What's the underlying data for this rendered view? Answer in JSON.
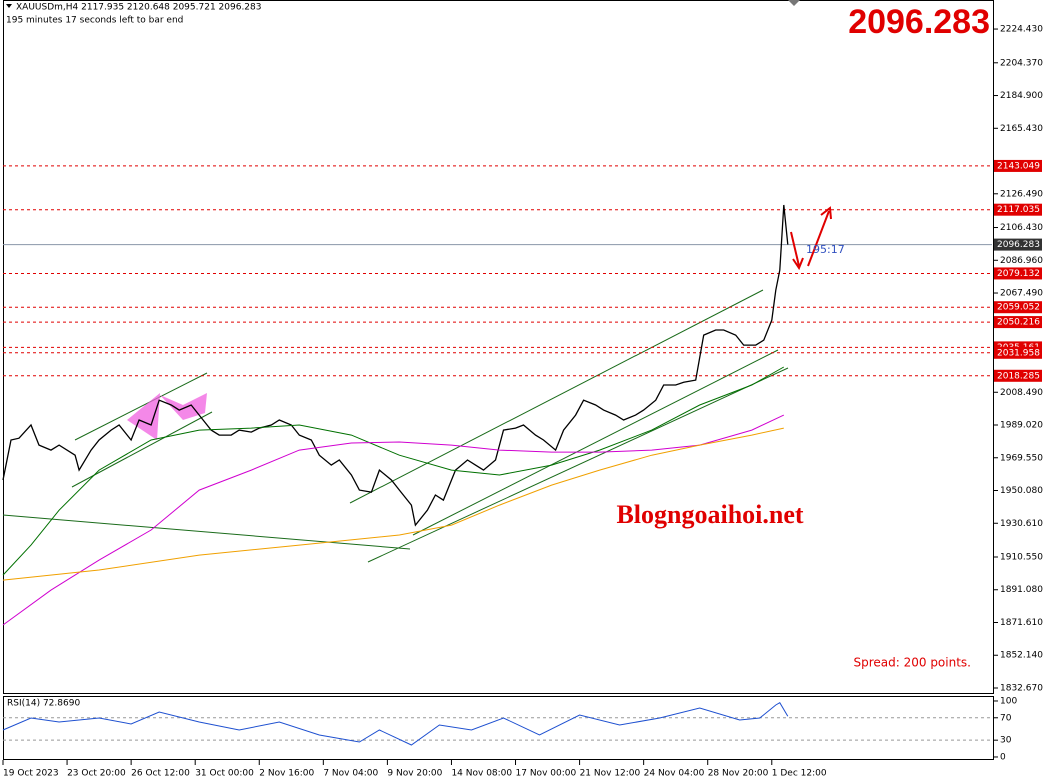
{
  "header": {
    "symbol_line": "XAUUSDm,H4  2117.935 2120.648 2095.721 2096.283",
    "timer_line": "195 minutes 17 seconds left to bar end"
  },
  "watermark": "Blogngoaihoi.net",
  "spread": "Spread: 200 points.",
  "countdown": "195:17",
  "chart_data": [
    {
      "type": "line",
      "xlim": [
        0,
        247
      ],
      "ylim": [
        1829.1,
        2241.7
      ],
      "yticks": [
        {
          "value": 2224.43,
          "label": "2224.430"
        },
        {
          "value": 2204.37,
          "label": "2204.370"
        },
        {
          "value": 2184.9,
          "label": "2184.900"
        },
        {
          "value": 2165.43,
          "label": "2165.430"
        },
        {
          "value": 2126.49,
          "label": "2126.490"
        },
        {
          "value": 2106.43,
          "label": "2106.430"
        },
        {
          "value": 2086.96,
          "label": "2086.960"
        },
        {
          "value": 2067.49,
          "label": "2067.490"
        },
        {
          "value": 2008.49,
          "label": "2008.490"
        },
        {
          "value": 1989.02,
          "label": "1989.020"
        },
        {
          "value": 1969.55,
          "label": "1969.550"
        },
        {
          "value": 1950.08,
          "label": "1950.080"
        },
        {
          "value": 1930.61,
          "label": "1930.610"
        },
        {
          "value": 1910.55,
          "label": "1910.550"
        },
        {
          "value": 1891.08,
          "label": "1891.080"
        },
        {
          "value": 1871.61,
          "label": "1871.610"
        },
        {
          "value": 1852.14,
          "label": "1852.140"
        },
        {
          "value": 1832.67,
          "label": "1832.670"
        }
      ],
      "levels": [
        2143.049,
        2117.035,
        2079.132,
        2059.052,
        2050.216,
        2035.161,
        2031.958,
        2018.285
      ],
      "level_color": "#e00000",
      "current_price": 2096.283,
      "series": [
        {
          "color": "#000000",
          "x": [
            0,
            2,
            4,
            7,
            9,
            12,
            14,
            18,
            19,
            22,
            24,
            27,
            29,
            32,
            34,
            37,
            39,
            42,
            44,
            47,
            49,
            52,
            54,
            57,
            59,
            62,
            64,
            67,
            69,
            72,
            74,
            77,
            79,
            82,
            84,
            87,
            89,
            92,
            94,
            97,
            99,
            102,
            103,
            106,
            108,
            110,
            113,
            116,
            118,
            120,
            123,
            125,
            128,
            130,
            133,
            135,
            138,
            140,
            143,
            145,
            148,
            150,
            153,
            155,
            158,
            160,
            163,
            165,
            168,
            170,
            173,
            175,
            178,
            180,
            183,
            185,
            188,
            190,
            192,
            193,
            194,
            195,
            196
          ],
          "values": [
            1956.3,
            1980.1,
            1981.2,
            1989.0,
            1977.1,
            1974.1,
            1977.1,
            1971.1,
            1962.2,
            1974.1,
            1980.1,
            1986.0,
            1989.0,
            1980.1,
            1992.0,
            1989.0,
            2003.8,
            2000.9,
            1997.9,
            2000.9,
            1994.9,
            1986.0,
            1983.0,
            1983.0,
            1986.0,
            1984.8,
            1987.2,
            1989.0,
            1992.0,
            1989.0,
            1983.0,
            1980.1,
            1971.1,
            1965.2,
            1968.2,
            1959.3,
            1950.3,
            1949.1,
            1962.2,
            1956.3,
            1950.3,
            1941.4,
            1929.5,
            1938.4,
            1947.4,
            1944.4,
            1962.2,
            1968.2,
            1965.2,
            1962.2,
            1968.2,
            1986.0,
            1987.2,
            1989.0,
            1983.0,
            1980.1,
            1974.1,
            1986.0,
            1994.9,
            2003.8,
            2000.9,
            1997.9,
            1994.9,
            1992.0,
            1994.9,
            1997.9,
            2003.8,
            2012.8,
            2012.8,
            2014.5,
            2015.7,
            2042.5,
            2045.5,
            2045.5,
            2042.5,
            2036.5,
            2036.5,
            2039.5,
            2051.4,
            2069.2,
            2081.1,
            2119.8,
            2096.283
          ]
        },
        {
          "color": "#007000",
          "x": [
            0,
            7,
            14,
            24,
            37,
            49,
            62,
            74,
            87,
            99,
            112,
            124,
            137,
            149,
            162,
            174,
            187,
            195
          ],
          "values": [
            1899.8,
            1917.6,
            1938.4,
            1962.2,
            1980.1,
            1986.0,
            1987.2,
            1989.0,
            1983.0,
            1971.1,
            1962.2,
            1959.3,
            1965.2,
            1974.1,
            1986.0,
            2000.9,
            2012.8,
            2023.5
          ]
        },
        {
          "color": "#d000d0",
          "x": [
            0,
            12,
            24,
            37,
            49,
            62,
            74,
            87,
            99,
            112,
            124,
            137,
            149,
            162,
            174,
            187,
            195
          ],
          "values": [
            1870.1,
            1890.9,
            1908.7,
            1926.6,
            1950.3,
            1962.2,
            1974.1,
            1978.3,
            1978.9,
            1977.1,
            1974.1,
            1972.9,
            1972.9,
            1974.1,
            1977.1,
            1986.0,
            1994.9
          ]
        },
        {
          "color": "#f0a000",
          "x": [
            0,
            24,
            49,
            74,
            99,
            112,
            124,
            137,
            149,
            162,
            174,
            187,
            195
          ],
          "values": [
            1896.8,
            1902.8,
            1911.7,
            1917.6,
            1923.6,
            1929.5,
            1941.4,
            1953.3,
            1962.2,
            1971.1,
            1977.1,
            1983.0,
            1987.2
          ]
        }
      ]
    },
    {
      "type": "line",
      "title": "RSI(14) 72.8690",
      "xlim": [
        0,
        247
      ],
      "ylim": [
        -5.4,
        107.1
      ],
      "yticks": [
        100,
        70,
        30,
        0
      ],
      "xticks": [
        {
          "value": 0,
          "label": "19 Oct 2023"
        },
        {
          "value": 16,
          "label": "23 Oct 20:00"
        },
        {
          "value": 32,
          "label": "26 Oct 12:00"
        },
        {
          "value": 48,
          "label": "31 Oct 00:00"
        },
        {
          "value": 64,
          "label": "2 Nov 16:00"
        },
        {
          "value": 80,
          "label": "7 Nov 04:00"
        },
        {
          "value": 96,
          "label": "9 Nov 20:00"
        },
        {
          "value": 112,
          "label": "14 Nov 08:00"
        },
        {
          "value": 128,
          "label": "17 Nov 00:00"
        },
        {
          "value": 144,
          "label": "21 Nov 12:00"
        },
        {
          "value": 160,
          "label": "24 Nov 04:00"
        },
        {
          "value": 176,
          "label": "28 Nov 20:00"
        },
        {
          "value": 192,
          "label": "1 Dec 12:00"
        }
      ],
      "series": [
        {
          "color": "#1e50d0",
          "x": [
            0,
            7,
            14,
            24,
            32,
            39,
            49,
            59,
            69,
            79,
            89,
            94,
            102,
            109,
            117,
            125,
            134,
            144,
            154,
            164,
            174,
            184,
            189,
            193,
            194,
            196
          ],
          "values": [
            48.2,
            69.6,
            62.5,
            69.6,
            58.9,
            80.4,
            62.5,
            48.2,
            62.5,
            39.3,
            26.8,
            48.2,
            21.4,
            57.1,
            48.2,
            69.6,
            39.3,
            75.0,
            57.1,
            69.6,
            87.5,
            66.1,
            69.6,
            92.9,
            97.0,
            72.869
          ]
        }
      ]
    }
  ]
}
